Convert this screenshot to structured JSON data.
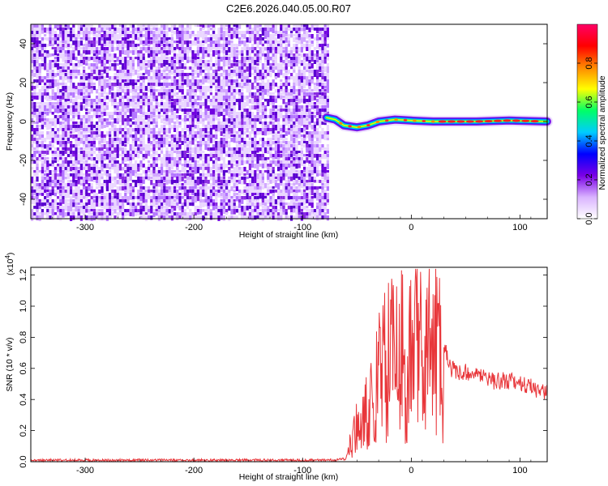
{
  "title": "C2E6.2026.040.05.00.R07",
  "chart_data": [
    {
      "type": "heatmap",
      "xlabel": "Height of straight line (km)",
      "ylabel": "Frequency (Hz)",
      "xlim": [
        -350,
        125
      ],
      "ylim": [
        -50,
        50
      ],
      "xticks": [
        -300,
        -200,
        -100,
        0,
        100
      ],
      "yticks": [
        -40,
        -20,
        0,
        20,
        40
      ],
      "noise_region_x": [
        -350,
        -77
      ],
      "signal_track": [
        {
          "x": -78,
          "y": 2
        },
        {
          "x": -70,
          "y": 1
        },
        {
          "x": -62,
          "y": -2
        },
        {
          "x": -50,
          "y": -3
        },
        {
          "x": -40,
          "y": -2
        },
        {
          "x": -30,
          "y": 0
        },
        {
          "x": -15,
          "y": 1
        },
        {
          "x": 0,
          "y": 0.5
        },
        {
          "x": 20,
          "y": 0
        },
        {
          "x": 60,
          "y": 0
        },
        {
          "x": 90,
          "y": 0.5
        },
        {
          "x": 125,
          "y": 0
        }
      ],
      "colorbar": {
        "label": "Normalized spectral amplitude",
        "range": [
          0.0,
          1.0
        ],
        "ticks": [
          "0.0",
          "0.2",
          "0.4",
          "0.6",
          "0.8"
        ],
        "colors": [
          "#ffffff",
          "#d9b3ff",
          "#7a00e6",
          "#0000ff",
          "#00ccff",
          "#00ff66",
          "#ffff00",
          "#ff8800",
          "#ff0000",
          "#ff0066"
        ]
      }
    },
    {
      "type": "line",
      "xlabel": "Height of straight line (km)",
      "ylabel": "SNR (10 * v/v)",
      "scale_label": "(x10",
      "scale_exp": "4",
      "scale_close": ")",
      "xlim": [
        -350,
        125
      ],
      "ylim": [
        0,
        1.25
      ],
      "xticks": [
        -300,
        -200,
        -100,
        0,
        100
      ],
      "yticks": [
        "0.0",
        "0.2",
        "0.4",
        "0.6",
        "0.8",
        "1.0",
        "1.2"
      ],
      "color": "#e8363a",
      "series": [
        {
          "x": [
            -350,
            -300,
            -250,
            -200,
            -150,
            -100,
            -70,
            -60,
            -55,
            -50,
            -45,
            -40,
            -35,
            -30,
            -25,
            -20,
            -15,
            -10,
            -5,
            0,
            5,
            10,
            15,
            20,
            25,
            30,
            35,
            40,
            50,
            60,
            70,
            80,
            90,
            100,
            110,
            120,
            125
          ],
          "values": [
            0.01,
            0.01,
            0.01,
            0.01,
            0.01,
            0.01,
            0.01,
            0.02,
            0.15,
            0.25,
            0.3,
            0.38,
            0.45,
            0.6,
            0.7,
            0.85,
            0.75,
            0.8,
            0.7,
            0.75,
            0.8,
            0.85,
            0.8,
            0.85,
            0.8,
            0.75,
            0.62,
            0.58,
            0.57,
            0.55,
            0.53,
            0.52,
            0.52,
            0.5,
            0.48,
            0.45,
            0.44
          ]
        }
      ]
    }
  ]
}
